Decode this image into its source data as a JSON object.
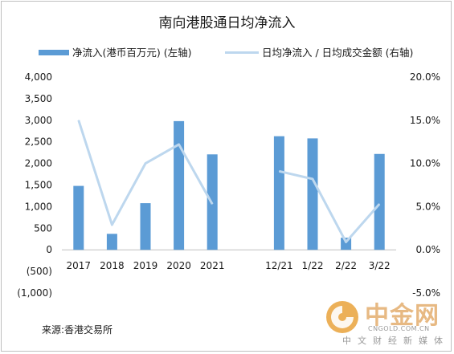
{
  "chart_data": {
    "type": "bar+line",
    "title": "南向港股通日均净流入",
    "categories": [
      "2017",
      "2018",
      "2019",
      "2020",
      "2021",
      "",
      "12/21",
      "1/22",
      "2/22",
      "3/22"
    ],
    "series": [
      {
        "name": "净流入(港币百万元) (左轴)",
        "type": "bar",
        "axis": "left",
        "color": "#5b9bd5",
        "values": [
          1480,
          370,
          1080,
          2980,
          2210,
          null,
          2630,
          2580,
          280,
          2220
        ]
      },
      {
        "name": "日均净流入 / 日均成交金额 (右轴)",
        "type": "line",
        "axis": "right",
        "color": "#bdd7ee",
        "values": [
          15.0,
          2.9,
          10.0,
          12.2,
          5.3,
          null,
          9.1,
          8.2,
          0.9,
          5.3
        ]
      }
    ],
    "left_axis": {
      "min": -1000,
      "max": 4000,
      "step": 500
    },
    "right_axis": {
      "min": -5.0,
      "max": 20.0,
      "step": 5.0,
      "unit": "%"
    },
    "left_tick_labels": [
      "4,000",
      "3,500",
      "3,000",
      "2,500",
      "2,000",
      "1,500",
      "1,000",
      "500",
      "0",
      "(500)",
      "(1,000)"
    ],
    "right_tick_labels": [
      "20.0%",
      "15.0%",
      "10.0%",
      "5.0%",
      "0.0%",
      "-5.0%"
    ],
    "grid": false,
    "legend_position": "top"
  },
  "source": "来源:香港交易所",
  "watermark": {
    "brand": "中金网",
    "url": "CNGOLD.COM.CN",
    "tagline": "中文财经新媒体"
  }
}
